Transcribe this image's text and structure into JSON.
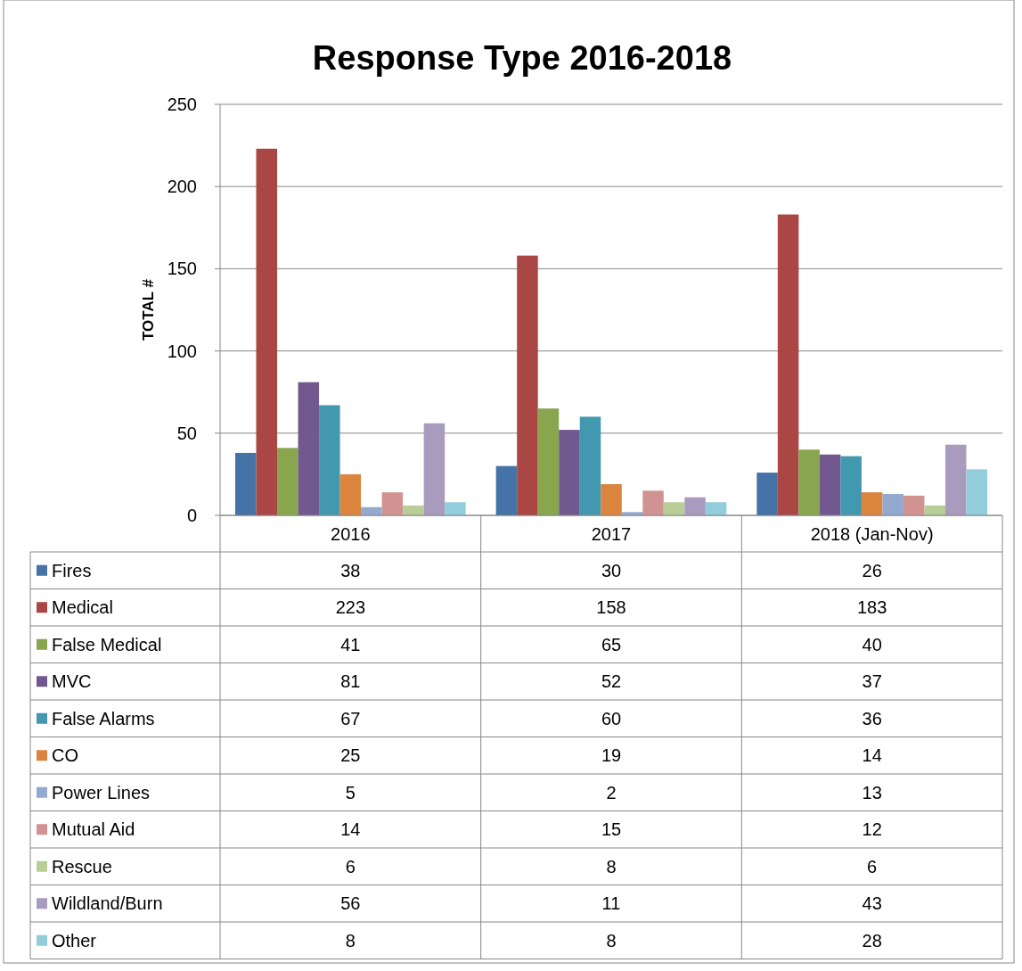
{
  "chart_data": {
    "type": "bar",
    "title": "Response Type 2016-2018",
    "ylabel": "TOTAL #",
    "categories": [
      "2016",
      "2017",
      "2018 (Jan-Nov)"
    ],
    "series": [
      {
        "name": "Fires",
        "color": "#4572a7",
        "values": [
          38,
          30,
          26
        ]
      },
      {
        "name": "Medical",
        "color": "#aa4643",
        "values": [
          223,
          158,
          183
        ]
      },
      {
        "name": "False Medical",
        "color": "#89a54e",
        "values": [
          41,
          65,
          40
        ]
      },
      {
        "name": "MVC",
        "color": "#71588f",
        "values": [
          81,
          52,
          37
        ]
      },
      {
        "name": "False Alarms",
        "color": "#4198af",
        "values": [
          67,
          60,
          36
        ]
      },
      {
        "name": "CO",
        "color": "#db843d",
        "values": [
          25,
          19,
          14
        ]
      },
      {
        "name": "Power Lines",
        "color": "#93a9cf",
        "values": [
          5,
          2,
          13
        ]
      },
      {
        "name": "Mutual Aid",
        "color": "#d19392",
        "values": [
          14,
          15,
          12
        ]
      },
      {
        "name": "Rescue",
        "color": "#b9cd96",
        "values": [
          6,
          8,
          6
        ]
      },
      {
        "name": "Wildland/Burn",
        "color": "#a99bbd",
        "values": [
          56,
          11,
          43
        ]
      },
      {
        "name": "Other",
        "color": "#92cddc",
        "values": [
          8,
          8,
          28
        ]
      }
    ],
    "ylim": [
      0,
      250
    ],
    "yticks": [
      0,
      50,
      100,
      150,
      200,
      250
    ],
    "grid": "y",
    "legend": "bottom",
    "data_labels": true
  }
}
